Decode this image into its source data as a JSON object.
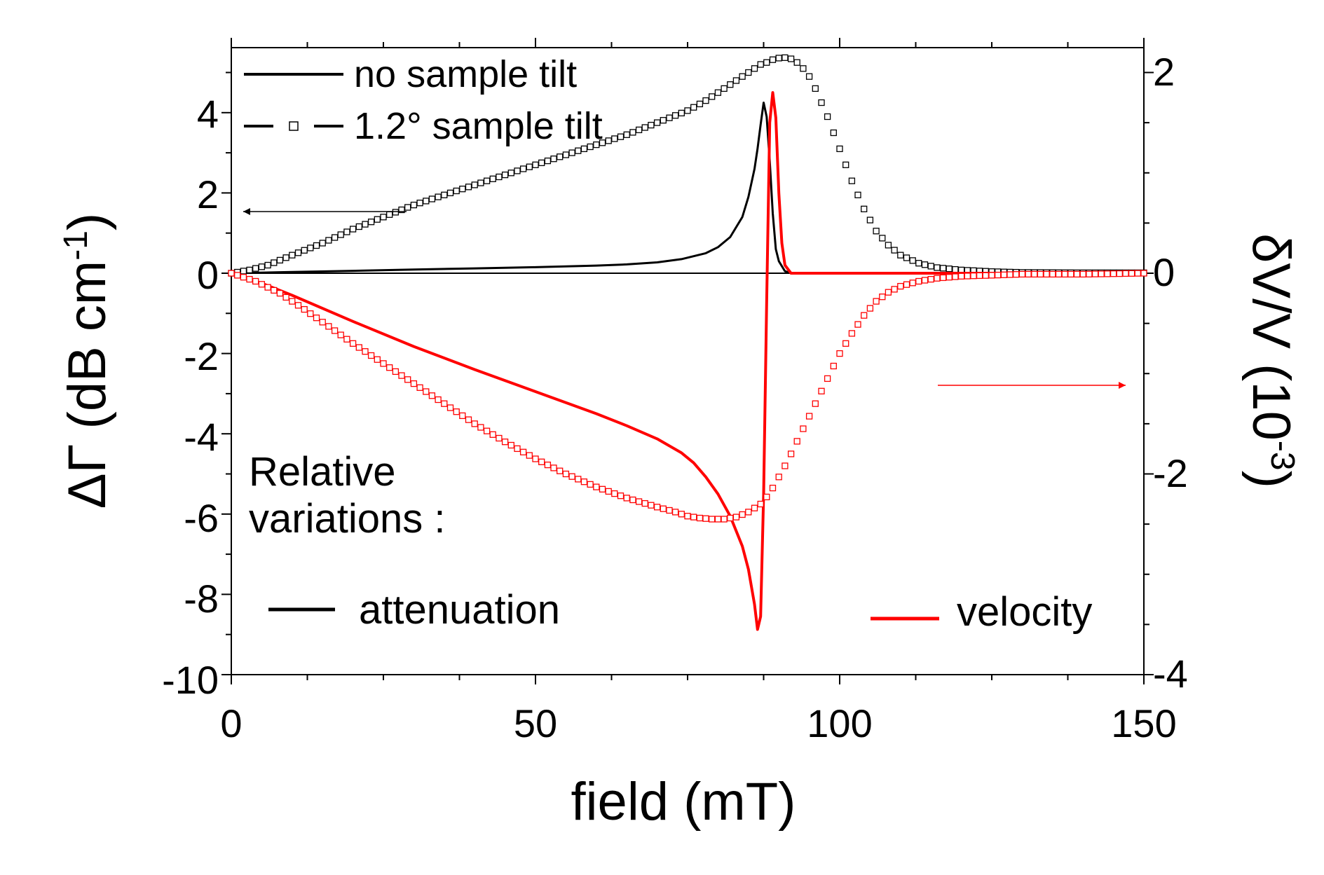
{
  "chart_data": {
    "type": "line",
    "xlabel": "field (mT)",
    "ylabel_left": {
      "prefix": "ΔΓ (dB cm",
      "sup": "-1",
      "suffix": ")"
    },
    "ylabel_right": {
      "prefix": "δV/V (10",
      "sup": "-3",
      "suffix": ")"
    },
    "xlim": [
      0,
      150
    ],
    "ylim_left": [
      -10,
      5.5
    ],
    "ylim_right": [
      -4,
      2.2
    ],
    "x_ticks": [
      "0",
      "50",
      "100",
      "150"
    ],
    "y_ticks_left": [
      "4",
      "2",
      "0",
      "-2",
      "-4",
      "-6",
      "-8",
      "-10"
    ],
    "y_ticks_right": [
      "2",
      "0",
      "-2",
      "-4"
    ],
    "legend": {
      "no_tilt_label": "no sample tilt",
      "tilt_label": "1.2° sample tilt"
    },
    "annotation": {
      "line1": "Relative",
      "line2": "variations :",
      "attenuation_label": "attenuation",
      "velocity_label": "velocity"
    },
    "colors": {
      "attenuation": "#000000",
      "velocity": "#ff0000"
    },
    "series": [
      {
        "name": "attenuation, no sample tilt",
        "axis": "left",
        "style": "solid",
        "x": [
          0,
          10,
          20,
          30,
          40,
          50,
          60,
          65,
          70,
          74,
          78,
          80,
          82,
          84,
          85,
          86,
          86.5,
          87,
          87.5,
          88,
          88.5,
          89,
          89.5,
          90,
          91,
          92,
          100,
          150
        ],
        "y": [
          0,
          0.03,
          0.06,
          0.09,
          0.12,
          0.15,
          0.19,
          0.22,
          0.27,
          0.35,
          0.5,
          0.65,
          0.9,
          1.4,
          1.9,
          2.6,
          3.1,
          3.7,
          4.25,
          3.9,
          2.8,
          1.5,
          0.6,
          0.3,
          0.05,
          0,
          0,
          0
        ]
      },
      {
        "name": "attenuation, 1.2° sample tilt",
        "axis": "left",
        "style": "squares",
        "x": [
          0,
          3,
          6,
          10,
          15,
          20,
          25,
          30,
          35,
          40,
          45,
          50,
          55,
          60,
          65,
          70,
          75,
          78,
          80,
          82,
          84,
          86,
          87,
          88,
          89,
          90,
          91,
          92,
          93,
          94,
          95,
          96,
          97,
          98,
          100,
          102,
          104,
          106,
          108,
          110,
          113,
          116,
          120,
          125,
          130,
          140,
          150
        ],
        "y": [
          0,
          0.08,
          0.2,
          0.45,
          0.75,
          1.1,
          1.4,
          1.7,
          1.95,
          2.2,
          2.45,
          2.7,
          2.95,
          3.2,
          3.45,
          3.75,
          4.05,
          4.3,
          4.5,
          4.7,
          4.9,
          5.1,
          5.2,
          5.25,
          5.32,
          5.36,
          5.37,
          5.34,
          5.25,
          5.1,
          4.9,
          4.6,
          4.25,
          3.9,
          3.1,
          2.3,
          1.6,
          1.05,
          0.7,
          0.45,
          0.25,
          0.14,
          0.08,
          0.04,
          0.02,
          0.01,
          0.01
        ]
      },
      {
        "name": "velocity, no sample tilt",
        "axis": "right",
        "style": "solid",
        "x": [
          0,
          5,
          10,
          20,
          30,
          40,
          50,
          60,
          65,
          70,
          74,
          76,
          78,
          80,
          82,
          84,
          85,
          86,
          86.5,
          87,
          87.5,
          88,
          88.5,
          89,
          89.5,
          90,
          90.5,
          91,
          92,
          100,
          150
        ],
        "y": [
          0,
          -0.1,
          -0.22,
          -0.48,
          -0.73,
          -0.96,
          -1.18,
          -1.4,
          -1.52,
          -1.65,
          -1.79,
          -1.89,
          -2.03,
          -2.2,
          -2.42,
          -2.72,
          -2.95,
          -3.3,
          -3.55,
          -3.42,
          -2.2,
          -0.3,
          1.5,
          1.8,
          1.55,
          0.8,
          0.3,
          0.08,
          0,
          0,
          0
        ]
      },
      {
        "name": "velocity, 1.2° sample tilt",
        "axis": "right",
        "style": "squares",
        "x": [
          0,
          4,
          8,
          12,
          16,
          20,
          25,
          30,
          35,
          40,
          45,
          50,
          55,
          60,
          65,
          70,
          73,
          75,
          77,
          79,
          81,
          83,
          85,
          87,
          88,
          89,
          90,
          91,
          92,
          94,
          96,
          98,
          100,
          102,
          104,
          106,
          108,
          110,
          113,
          116,
          120,
          125,
          130,
          140,
          150
        ],
        "y": [
          0,
          -0.08,
          -0.2,
          -0.36,
          -0.53,
          -0.7,
          -0.9,
          -1.1,
          -1.3,
          -1.5,
          -1.68,
          -1.85,
          -2.0,
          -2.13,
          -2.24,
          -2.33,
          -2.38,
          -2.42,
          -2.44,
          -2.45,
          -2.45,
          -2.43,
          -2.38,
          -2.3,
          -2.23,
          -2.14,
          -2.03,
          -1.92,
          -1.8,
          -1.55,
          -1.3,
          -1.05,
          -0.8,
          -0.6,
          -0.42,
          -0.28,
          -0.19,
          -0.13,
          -0.08,
          -0.05,
          -0.03,
          -0.02,
          -0.01,
          -0.01,
          0
        ]
      }
    ]
  }
}
